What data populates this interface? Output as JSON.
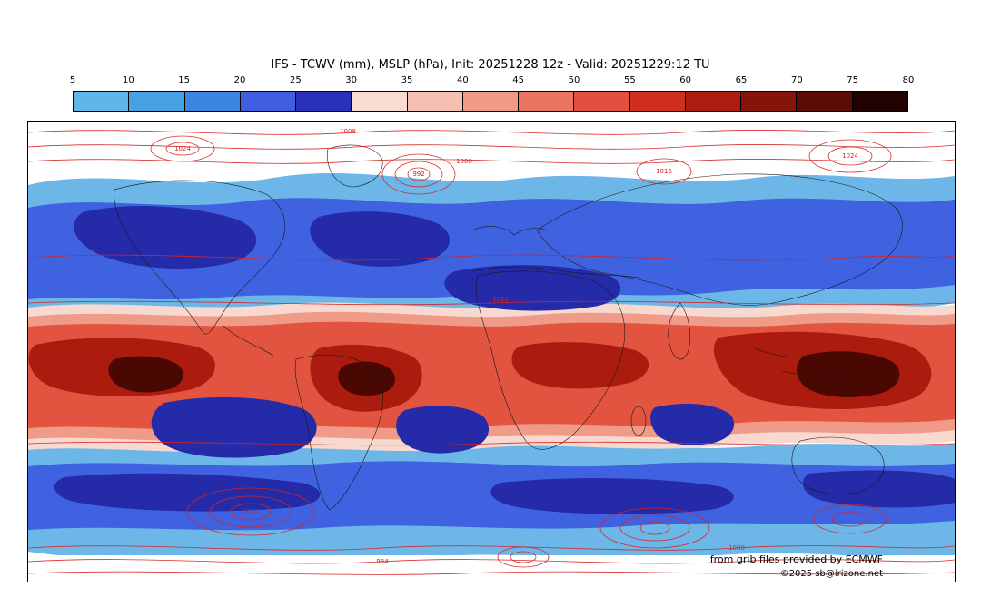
{
  "header": {
    "title": "IFS - TCWV (mm), MSLP (hPa), Init: 20251228 12z - Valid: 20251229:12 TU"
  },
  "colorbar": {
    "tick_labels": [
      "5",
      "10",
      "15",
      "20",
      "25",
      "30",
      "35",
      "40",
      "45",
      "50",
      "55",
      "60",
      "65",
      "70",
      "75",
      "80"
    ],
    "segment_colors": [
      "#5fb7e8",
      "#47a2e4",
      "#3c86e0",
      "#3f5fe0",
      "#2a2fb8",
      "#f8dcd4",
      "#f5bfb2",
      "#f09b88",
      "#ea7560",
      "#e25140",
      "#d02f1e",
      "#ad1d10",
      "#87140a",
      "#5c0c05",
      "#230301"
    ]
  },
  "map": {
    "contour_labels": [
      "1024",
      "1016",
      "1008",
      "1000",
      "992",
      "984",
      "1020",
      "1012"
    ]
  },
  "footer": {
    "credit_line1": "from grib files provided by ECMWF",
    "credit_line2": "©2025 sb@irizone.net"
  },
  "chart_data": {
    "type": "heatmap",
    "title": "IFS - TCWV (mm), MSLP (hPa), Init: 20251228 12z - Valid: 20251229:12 TU",
    "model": "IFS",
    "fill_variable": "TCWV (mm)",
    "contour_variable": "MSLP (hPa)",
    "init_time": "20251228 12z",
    "valid_time": "20251229:12 TU",
    "projection": "global equirectangular",
    "legend_position": "top",
    "colorbar": {
      "levels": [
        5,
        10,
        15,
        20,
        25,
        30,
        35,
        40,
        45,
        50,
        55,
        60,
        65,
        70,
        75,
        80
      ],
      "colors": [
        "#5fb7e8",
        "#47a2e4",
        "#3c86e0",
        "#3f5fe0",
        "#2a2fb8",
        "#f8dcd4",
        "#f5bfb2",
        "#f09b88",
        "#ea7560",
        "#e25140",
        "#d02f1e",
        "#ad1d10",
        "#87140a",
        "#5c0c05",
        "#230301"
      ]
    },
    "visible_contour_labels": [
      1024,
      1016,
      1008,
      1000,
      992,
      984,
      1020,
      1012
    ],
    "field_description": "High TCWV (red, 40-80 mm) along tropical belt; moderate TCWV (blue, 5-30 mm) over mid-latitude storm tracks; low TCWV (white, <5 mm) over polar regions and deserts; red MSLP isobar contours overlaid globally",
    "data_source_note": "from grib files provided by ECMWF"
  }
}
